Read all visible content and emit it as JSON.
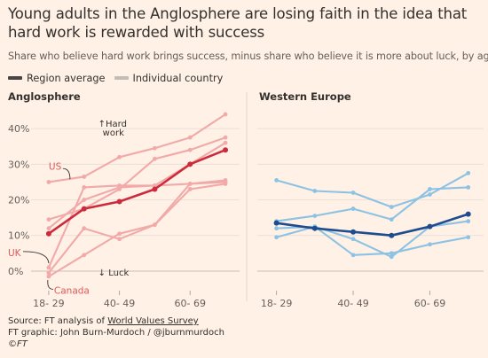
{
  "header": {
    "title": "Young adults in the Anglosphere are losing faith in the idea that hard work is rewarded with success",
    "subtitle": "Share who believe hard work brings success, minus share who believe it is more about luck, by age"
  },
  "legend": [
    {
      "label": "Region average",
      "color": "#4a4542"
    },
    {
      "label": "Individual country",
      "color": "#c4bcb6"
    }
  ],
  "footer": {
    "source_prefix": "Source: FT analysis of ",
    "source_link": "World Values Survey",
    "credit": "FT graphic: John Burn-Murdoch / @jburnmurdoch",
    "copyright": "©FT"
  },
  "chart_data": [
    {
      "type": "line",
      "title": "Anglosphere",
      "x_tick_labels": [
        "18- 29",
        "40- 49",
        "60- 69"
      ],
      "x": [
        24,
        34,
        44,
        54,
        64,
        74
      ],
      "xlim": [
        19,
        78
      ],
      "ylim": [
        -3,
        45
      ],
      "y_ticks": [
        0,
        10,
        20,
        30,
        40
      ],
      "y_tick_labels": [
        "0%",
        "10%",
        "20%",
        "30%",
        "40%"
      ],
      "grid": true,
      "colors": {
        "average": "#cc2b3e",
        "country": "#f1a9a9",
        "label": "#dd5a5d"
      },
      "annotations": {
        "up": "↑Hard work",
        "down": "↓ Luck"
      },
      "series": [
        {
          "kind": "country",
          "values": [
            25,
            26.5,
            32,
            34.5,
            37.5,
            44
          ]
        },
        {
          "kind": "country",
          "values": [
            14.5,
            17.5,
            23,
            31.5,
            34,
            37.5
          ]
        },
        {
          "kind": "country",
          "values": [
            12,
            20,
            23.5,
            24,
            24.5,
            25
          ]
        },
        {
          "kind": "country",
          "values": [
            1,
            23.5,
            24,
            24,
            30,
            36
          ]
        },
        {
          "kind": "country",
          "values": [
            -1.5,
            4.5,
            10.5,
            13,
            24.5,
            25.5
          ]
        },
        {
          "kind": "country",
          "values": [
            -0.5,
            12,
            9,
            13,
            23,
            24.5
          ]
        },
        {
          "kind": "average",
          "values": [
            10.5,
            17.5,
            19.5,
            23,
            30,
            34
          ]
        }
      ],
      "labels": [
        {
          "text": "US",
          "x": 24,
          "y": 25
        },
        {
          "text": "UK",
          "x": 24,
          "y": 1
        },
        {
          "text": "Canada",
          "x": 24,
          "y": -1.5
        }
      ]
    },
    {
      "type": "line",
      "title": "Western Europe",
      "x_tick_labels": [
        "18- 29",
        "40- 49",
        "60- 69"
      ],
      "x": [
        24,
        34,
        44,
        54,
        64,
        74
      ],
      "xlim": [
        19,
        78
      ],
      "ylim": [
        -3,
        45
      ],
      "grid": true,
      "colors": {
        "average": "#1e4c8f",
        "country": "#8cc2e3"
      },
      "series": [
        {
          "kind": "country",
          "values": [
            25.5,
            22.5,
            22,
            18,
            21.5,
            27.5
          ]
        },
        {
          "kind": "country",
          "values": [
            14,
            15.5,
            17.5,
            14.5,
            23,
            23.5
          ]
        },
        {
          "kind": "country",
          "values": [
            12,
            12.5,
            9,
            4,
            12.5,
            14
          ]
        },
        {
          "kind": "country",
          "values": [
            9.5,
            12.5,
            4.5,
            5,
            7.5,
            9.5
          ]
        },
        {
          "kind": "average",
          "values": [
            13.5,
            12,
            11,
            10,
            12.5,
            16
          ]
        }
      ]
    }
  ]
}
